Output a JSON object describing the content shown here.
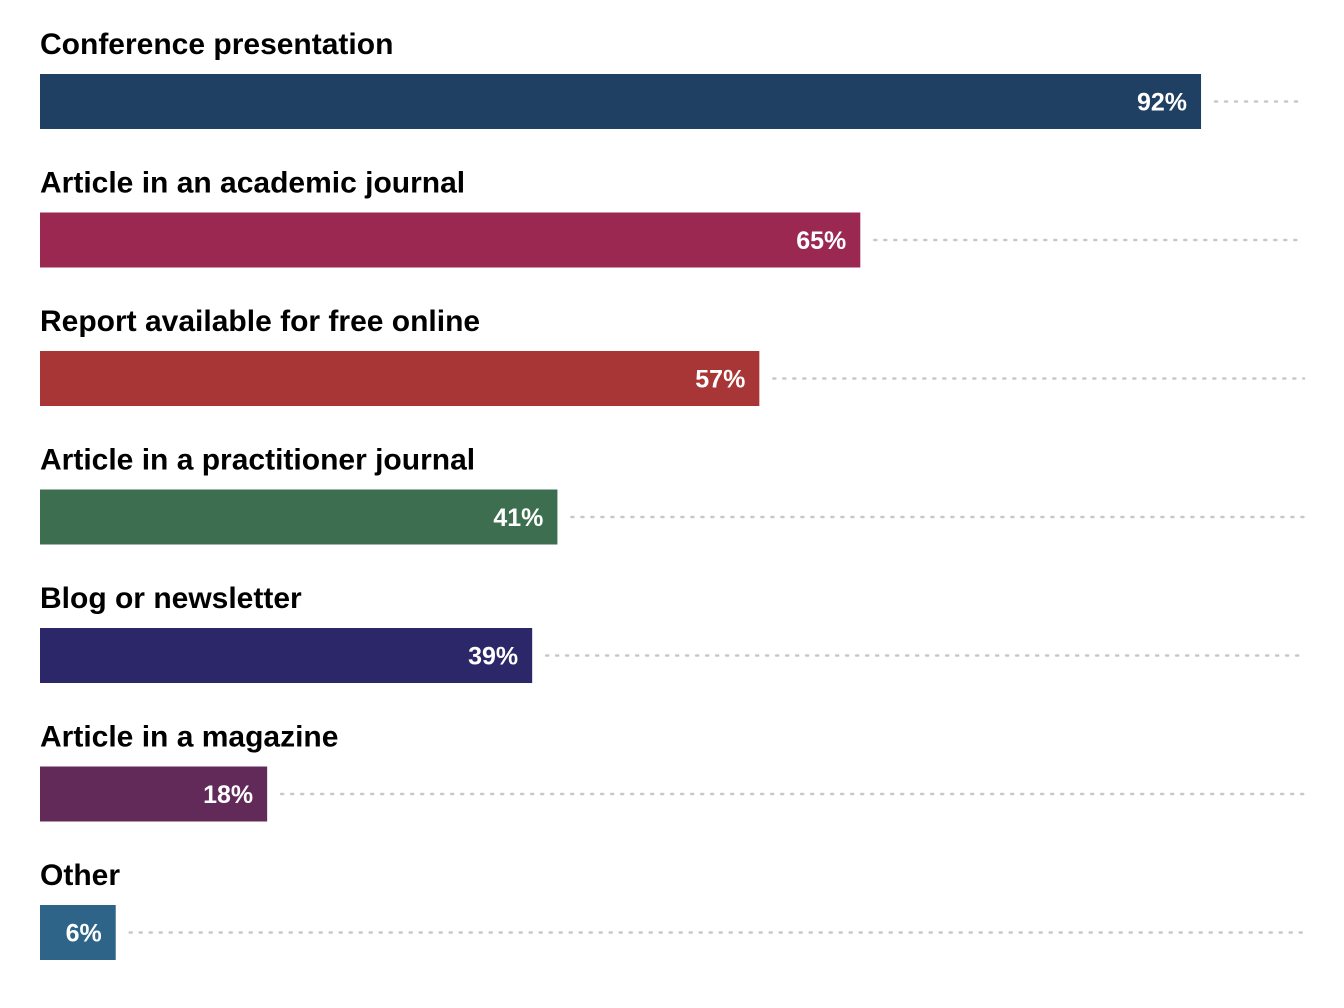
{
  "chart_data": {
    "type": "bar",
    "orientation": "horizontal",
    "categories": [
      "Conference presentation",
      "Article in an academic journal",
      "Report available for free online",
      "Article in a practitioner journal",
      "Blog or newsletter",
      "Article in a magazine",
      "Other"
    ],
    "values": [
      92,
      65,
      57,
      41,
      39,
      18,
      6
    ],
    "value_labels": [
      "92%",
      "65%",
      "57%",
      "41%",
      "39%",
      "18%",
      "6%"
    ],
    "colors": [
      "#1f3f63",
      "#9b2850",
      "#a83636",
      "#3d6e4f",
      "#2b2768",
      "#622a58",
      "#2d6487"
    ],
    "xlim": [
      0,
      100
    ],
    "title": "",
    "xlabel": "",
    "ylabel": "",
    "grid": false,
    "legend": "none",
    "leader_lines": "dotted"
  }
}
